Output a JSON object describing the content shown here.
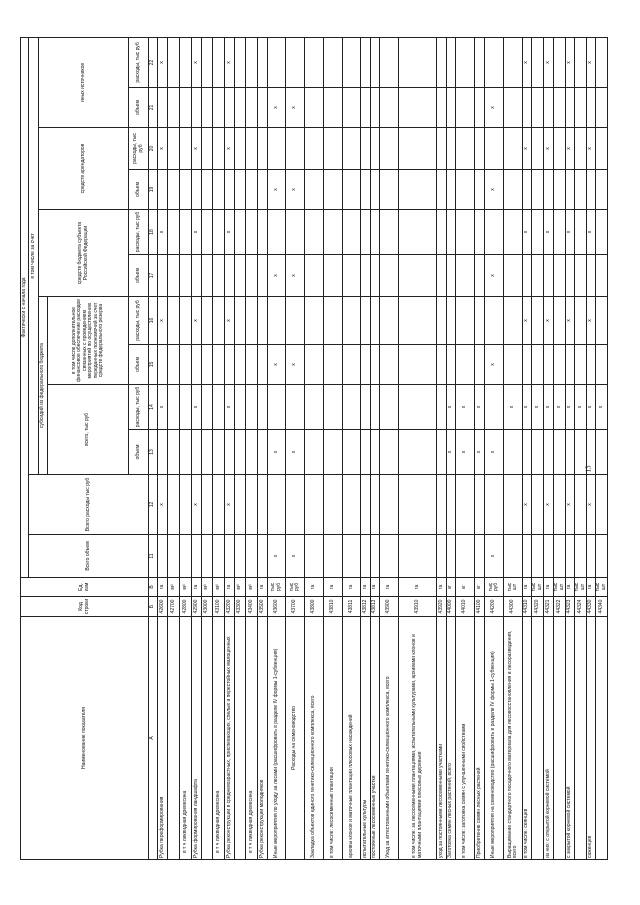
{
  "page_number": "13",
  "header": {
    "name": "Наименование показателя",
    "code": "Код строки",
    "unit": "Ед. изм",
    "actual": "Фактически с начала года",
    "total_volume": "Всего объем",
    "total_expenses": "Всего расходы тыс руб",
    "incl_from": "в том числе за счет",
    "federal": "субсидий из федерального бюджета",
    "federal_total": "всего, тыс руб",
    "federal_reserve": "в том числе дополнительное финансовое обеспечение расходов связанных с проведением мероприятий по осуществлению переданных полномочий за счет средств федерального резерва",
    "subject_budget": "средств бюджета субъекта Российской Федерации",
    "tenants": "средств арендаторов",
    "other": "иных источников",
    "volume": "объем",
    "expenses": "расходы, тыс руб",
    "col_numbers": [
      "А",
      "Б",
      "В",
      "11",
      "12",
      "13",
      "14",
      "15",
      "16",
      "17",
      "18",
      "19",
      "20",
      "21",
      "22"
    ]
  },
  "mark": "x",
  "rows": [
    {
      "name": "Рубка переформирования",
      "code": "42600",
      "unit": "га",
      "x": [
        12,
        14,
        16,
        18,
        20,
        22
      ]
    },
    {
      "name": "",
      "code": "42700",
      "unit": "м³",
      "x": []
    },
    {
      "name": "в т ч  ликвидная древесина",
      "code": "42800",
      "unit": "м³",
      "x": [],
      "indent": true
    },
    {
      "name": "Рубка формирования ландшафта",
      "code": "42900",
      "unit": "га",
      "x": [
        12,
        14,
        16,
        18,
        20,
        22
      ]
    },
    {
      "name": "",
      "code": "43000",
      "unit": "м³",
      "x": []
    },
    {
      "name": "в т ч  ликвидная древесина",
      "code": "43100",
      "unit": "м³",
      "x": [],
      "indent": true
    },
    {
      "name": "Рубка реконструкции в средневозрастных, приспевающих, спелых и перестойных малоценных",
      "code": "43200",
      "unit": "га",
      "x": [
        12,
        14,
        16,
        18,
        20,
        22
      ]
    },
    {
      "name": "",
      "code": "43300",
      "unit": "м³",
      "x": []
    },
    {
      "name": "в т ч  ликвидная древесина",
      "code": "43400",
      "unit": "м³",
      "x": [],
      "indent": true
    },
    {
      "name": "Рубка реконструкции молодняков",
      "code": "43500",
      "unit": "га",
      "x": []
    },
    {
      "name": "Иные мероприятия по уходу за лесами (расшифровать в разделе IV формы 1-субвенция)",
      "code": "43600",
      "unit": "тыс руб",
      "x": [
        11,
        13,
        15,
        17,
        19,
        21
      ]
    },
    {
      "name": "Расходы на семеноводство",
      "code": "43700",
      "unit": "тыс руб",
      "x": [
        11,
        13,
        15,
        17,
        19,
        21
      ],
      "heading": true
    },
    {
      "name": "Закладка объектов единого генетико-селекционного комплекса, всего",
      "code": "43800",
      "unit": "га",
      "x": []
    },
    {
      "name": "в том числе: лесосеменные плантации",
      "code": "43810",
      "unit": "га",
      "x": []
    },
    {
      "name": "архивы клонов и маточные плантации плюсовых насаждений",
      "code": "43811",
      "unit": "га",
      "x": []
    },
    {
      "name": "испытательные культуры",
      "code": "43812",
      "unit": "га",
      "x": []
    },
    {
      "name": "постоянные лесосеменные участки",
      "code": "43813",
      "unit": "га",
      "x": []
    },
    {
      "name": "Уход за аттестованными объектами генетико-селекционного комплекса, всего",
      "code": "43900",
      "unit": "га",
      "x": []
    },
    {
      "name": "в том числе: за лесосеменными плантациями, испытательными культурами, архивами клонов и маточными плантациями плюсовых деревьев",
      "code": "43910",
      "unit": "га",
      "x": []
    },
    {
      "name": "уход за постоянными лесосеменными участками",
      "code": "43920",
      "unit": "га",
      "x": []
    },
    {
      "name": "Заготовка семян лесных растений, всего",
      "code": "44000",
      "unit": "кг",
      "x": [
        13,
        14
      ]
    },
    {
      "name": "в том числе: заготовка семян с улучшенными свойствами",
      "code": "44010",
      "unit": "кг",
      "x": [
        13,
        14
      ]
    },
    {
      "name": "Приобретение семян лесных растений",
      "code": "44100",
      "unit": "кг",
      "x": [
        13,
        14
      ]
    },
    {
      "name": "Иные мероприятия на семеноводство (расшифровать в разделе IV формы 1-субвенция)",
      "code": "44200",
      "unit": "тыс руб",
      "x": [
        11,
        13,
        15,
        17,
        19,
        21
      ]
    },
    {
      "name": "Выращивание стандартного посадочного материала для лесовосстановления и лесоразведения, всего",
      "code": "44300",
      "unit": "тыс шт",
      "x": [
        14
      ]
    },
    {
      "name": "в том числе: сеянцев",
      "code": "44310",
      "unit": "га",
      "x": [
        12,
        14,
        16,
        18,
        20,
        22
      ]
    },
    {
      "name": "",
      "code": "44320",
      "unit": "тыс шт",
      "x": [
        14
      ]
    },
    {
      "name": "из них: с открытой корневой системой",
      "code": "44321",
      "unit": "га",
      "x": [
        12,
        14,
        16,
        18,
        20,
        22
      ]
    },
    {
      "name": "",
      "code": "44322",
      "unit": "тыс шт",
      "x": [
        14
      ]
    },
    {
      "name": "с закрытой корневой системой",
      "code": "44323",
      "unit": "га",
      "x": [
        12,
        14,
        16,
        18,
        20,
        22
      ]
    },
    {
      "name": "",
      "code": "44324",
      "unit": "тыс шт",
      "x": [
        14
      ]
    },
    {
      "name": "саженцев",
      "code": "44330",
      "unit": "га",
      "x": [
        12,
        14,
        16,
        18,
        20,
        22
      ]
    },
    {
      "name": "",
      "code": "44340",
      "unit": "тыс шт",
      "x": [
        14
      ]
    }
  ]
}
